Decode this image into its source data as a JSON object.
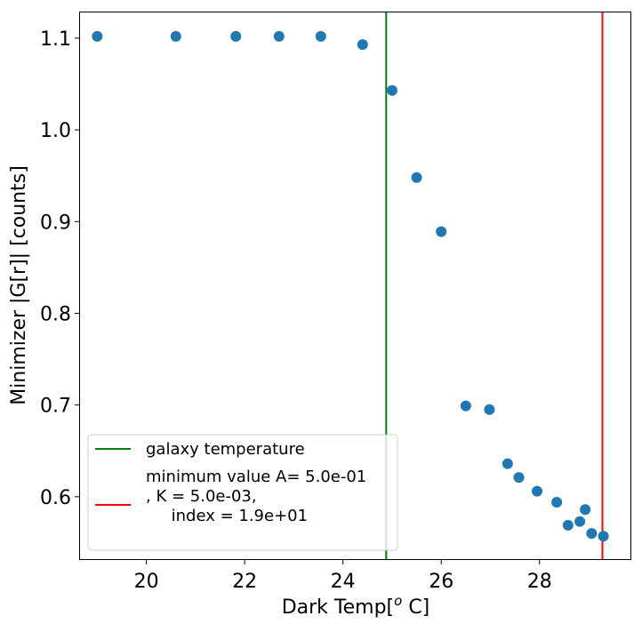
{
  "chart_data": {
    "type": "scatter",
    "xlabel": "Dark Temp[",
    "xlabel_sup": "o",
    "xlabel_tail": " C]",
    "ylabel": "Minimizer |G[r]| [counts]",
    "xlim": [
      18.65,
      29.85
    ],
    "ylim": [
      0.532,
      1.128
    ],
    "xticks": [
      20,
      22,
      24,
      26,
      28
    ],
    "yticks": [
      0.6,
      0.7,
      0.8,
      0.9,
      1.0,
      1.1
    ],
    "xtick_labels": [
      "20",
      "22",
      "24",
      "26",
      "28"
    ],
    "ytick_labels": [
      "0.6",
      "0.7",
      "0.8",
      "0.9",
      "1.0",
      "1.1"
    ],
    "point_color": "#1f77b4",
    "points": [
      {
        "x": 19.0,
        "y": 1.102
      },
      {
        "x": 20.6,
        "y": 1.102
      },
      {
        "x": 21.82,
        "y": 1.102
      },
      {
        "x": 22.7,
        "y": 1.102
      },
      {
        "x": 23.55,
        "y": 1.102
      },
      {
        "x": 24.4,
        "y": 1.093
      },
      {
        "x": 25.0,
        "y": 1.043
      },
      {
        "x": 25.5,
        "y": 0.948
      },
      {
        "x": 26.0,
        "y": 0.889
      },
      {
        "x": 26.5,
        "y": 0.699
      },
      {
        "x": 26.98,
        "y": 0.695
      },
      {
        "x": 27.35,
        "y": 0.636
      },
      {
        "x": 27.58,
        "y": 0.621
      },
      {
        "x": 27.95,
        "y": 0.606
      },
      {
        "x": 28.35,
        "y": 0.594
      },
      {
        "x": 28.58,
        "y": 0.569
      },
      {
        "x": 28.82,
        "y": 0.573
      },
      {
        "x": 28.93,
        "y": 0.586
      },
      {
        "x": 29.06,
        "y": 0.56
      },
      {
        "x": 29.3,
        "y": 0.557
      }
    ],
    "vlines": [
      {
        "x": 24.88,
        "color": "#008000"
      },
      {
        "x": 29.28,
        "color": "#ff0000"
      }
    ],
    "legend": {
      "placement": "lower-left",
      "entries": [
        {
          "color": "#008000",
          "lines": [
            "galaxy temperature"
          ]
        },
        {
          "color": "#ff0000",
          "lines": [
            "minimum value A= 5.0e-01",
            ", K = 5.0e-03,",
            "     index = 1.9e+01"
          ]
        }
      ]
    }
  }
}
